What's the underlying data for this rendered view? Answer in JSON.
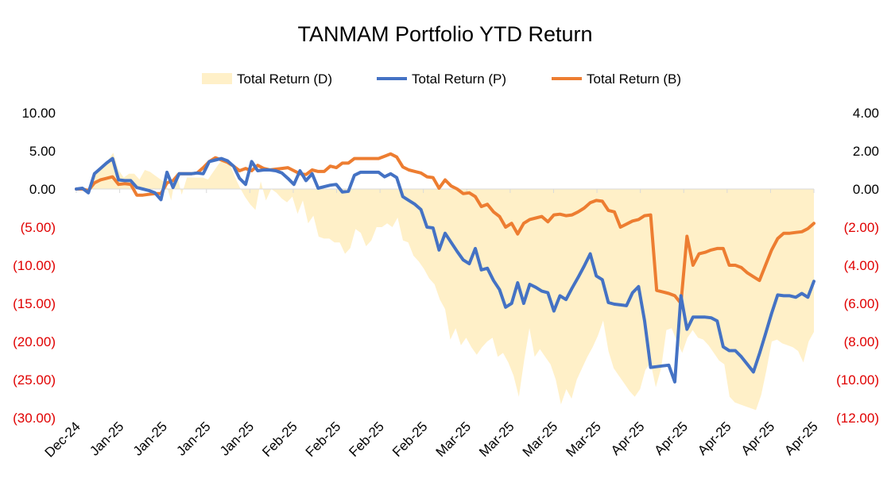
{
  "chart_data": {
    "type": "line",
    "title": "TANMAM Portfolio YTD Return",
    "legend_position": "top",
    "grid": false,
    "x_tick_labels": [
      "Dec-24",
      "Jan-25",
      "Jan-25",
      "Jan-25",
      "Jan-25",
      "Feb-25",
      "Feb-25",
      "Feb-25",
      "Feb-25",
      "Mar-25",
      "Mar-25",
      "Mar-25",
      "Mar-25",
      "Apr-25",
      "Apr-25",
      "Apr-25",
      "Apr-25",
      "Apr-25"
    ],
    "y_left": {
      "min": -30,
      "max": 10,
      "step": 5,
      "tick_labels": [
        "10.00",
        "5.00",
        "0.00",
        "(5.00)",
        "(10.00)",
        "(15.00)",
        "(20.00)",
        "(25.00)",
        "(30.00)"
      ],
      "negative_color": "#e00000"
    },
    "y_right": {
      "min": -12,
      "max": 4,
      "step": 2,
      "tick_labels": [
        "4.00",
        "2.00",
        "0.00",
        "(2.00)",
        "(4.00)",
        "(6.00)",
        "(8.00)",
        "(10.00)",
        "(12.00)"
      ],
      "negative_color": "#e00000"
    },
    "series": [
      {
        "name": "Total Return (D)",
        "type": "area",
        "axis": "right",
        "color": "#fff0c8",
        "values": [
          0.0,
          0.0,
          -0.2,
          0.5,
          0.9,
          1.2,
          1.5,
          1.9,
          1.0,
          0.6,
          0.8,
          0.8,
          0.5,
          1.0,
          0.9,
          0.7,
          0.5,
          0.3,
          -0.6,
          0.9,
          -0.3,
          0.6,
          0.6,
          0.6,
          0.6,
          0.5,
          0.9,
          1.3,
          1.6,
          1.4,
          0.7,
          0.1,
          -0.4,
          -0.8,
          -1.1,
          0.4,
          -0.6,
          0.0,
          -0.2,
          -0.5,
          -0.7,
          -0.4,
          -1.3,
          -0.6,
          -1.8,
          -1.4,
          -2.5,
          -2.6,
          -2.6,
          -2.8,
          -2.8,
          -3.4,
          -3.1,
          -2.1,
          -2.3,
          -3.0,
          -2.7,
          -2.0,
          -2.0,
          -1.8,
          -2.0,
          -1.5,
          -2.7,
          -2.8,
          -3.5,
          -3.8,
          -4.2,
          -4.7,
          -5.0,
          -5.8,
          -6.3,
          -7.9,
          -7.3,
          -8.2,
          -7.8,
          -8.3,
          -8.7,
          -8.3,
          -8.0,
          -7.8,
          -8.8,
          -8.6,
          -9.1,
          -9.8,
          -10.9,
          -9.0,
          -7.3,
          -8.8,
          -8.4,
          -8.8,
          -9.2,
          -10.0,
          -11.3,
          -10.5,
          -11.0,
          -10.0,
          -9.4,
          -8.8,
          -8.3,
          -7.7,
          -6.9,
          -8.5,
          -9.4,
          -9.8,
          -10.2,
          -10.6,
          -10.9,
          -10.5,
          -9.5,
          -9.1,
          -10.4,
          -9.4,
          -7.4,
          -7.3,
          -8.0,
          -8.6,
          -7.8,
          -7.4,
          -7.8,
          -7.9,
          -8.2,
          -8.6,
          -9.0,
          -9.2,
          -10.9,
          -11.2,
          -11.3,
          -11.4,
          -11.5,
          -11.6,
          -10.8,
          -9.5,
          -8.0,
          -7.9,
          -8.1,
          -8.2,
          -8.3,
          -8.5,
          -9.1,
          -8.0,
          -7.5
        ]
      },
      {
        "name": "Total Return (P)",
        "type": "line",
        "axis": "left",
        "color": "#4472c4",
        "values": [
          0.0,
          0.1,
          -0.5,
          2.0,
          2.7,
          3.4,
          4.0,
          1.2,
          1.1,
          1.1,
          0.2,
          0.0,
          -0.2,
          -0.5,
          -1.4,
          2.2,
          0.2,
          2.0,
          2.0,
          2.0,
          2.1,
          2.0,
          3.6,
          3.8,
          4.0,
          3.7,
          3.0,
          1.4,
          0.6,
          3.6,
          2.4,
          2.5,
          2.5,
          2.4,
          2.1,
          1.4,
          0.6,
          2.4,
          1.1,
          2.0,
          0.1,
          0.3,
          0.5,
          0.6,
          -0.4,
          -0.3,
          1.8,
          2.2,
          2.2,
          2.2,
          2.2,
          1.6,
          2.0,
          1.5,
          -1.0,
          -1.5,
          -2.0,
          -2.7,
          -5.0,
          -5.1,
          -8.0,
          -5.8,
          -7.0,
          -8.2,
          -9.3,
          -9.8,
          -7.8,
          -10.6,
          -10.4,
          -12.0,
          -13.2,
          -15.5,
          -15.0,
          -12.3,
          -15.0,
          -12.5,
          -12.9,
          -13.4,
          -13.6,
          -16.0,
          -14.0,
          -14.5,
          -13.0,
          -11.6,
          -10.1,
          -8.5,
          -11.4,
          -11.9,
          -14.9,
          -15.1,
          -15.2,
          -15.3,
          -13.6,
          -12.8,
          -17.3,
          -23.4,
          -23.3,
          -23.2,
          -23.1,
          -25.3,
          -14.0,
          -18.4,
          -16.8,
          -16.8,
          -16.8,
          -16.9,
          -17.3,
          -20.7,
          -21.2,
          -21.2,
          -22.0,
          -23.0,
          -24.0,
          -21.6,
          -19.0,
          -16.3,
          -13.9,
          -14.0,
          -14.0,
          -14.2,
          -13.7,
          -14.2,
          -12.1
        ]
      },
      {
        "name": "Total Return (B)",
        "type": "line",
        "axis": "left",
        "color": "#ed7d31",
        "values": [
          0.0,
          0.0,
          -0.2,
          0.8,
          1.2,
          1.4,
          1.6,
          0.6,
          0.7,
          0.6,
          -0.8,
          -0.8,
          -0.7,
          -0.6,
          -0.6,
          0.8,
          1.1,
          2.0,
          2.0,
          2.0,
          2.1,
          2.8,
          3.6,
          4.1,
          3.8,
          3.5,
          3.0,
          2.4,
          2.7,
          2.4,
          3.1,
          2.7,
          2.5,
          2.6,
          2.7,
          2.8,
          2.4,
          2.0,
          1.9,
          2.5,
          2.3,
          2.3,
          3.0,
          2.8,
          3.4,
          3.4,
          4.0,
          4.0,
          4.0,
          4.0,
          4.0,
          4.3,
          4.6,
          4.2,
          2.9,
          2.5,
          2.3,
          2.1,
          1.6,
          1.5,
          0.1,
          1.2,
          0.4,
          0.0,
          -0.6,
          -0.5,
          -1.0,
          -2.3,
          -2.0,
          -3.0,
          -3.6,
          -5.0,
          -4.5,
          -5.9,
          -4.5,
          -4.0,
          -3.8,
          -3.6,
          -4.3,
          -3.4,
          -3.3,
          -3.5,
          -3.4,
          -3.0,
          -2.5,
          -1.8,
          -1.5,
          -1.6,
          -2.8,
          -3.0,
          -5.0,
          -4.6,
          -4.2,
          -4.0,
          -3.5,
          -3.4,
          -13.3,
          -13.5,
          -13.7,
          -14.0,
          -15.0,
          -6.2,
          -10.0,
          -8.5,
          -8.3,
          -8.0,
          -7.8,
          -7.8,
          -10.0,
          -10.0,
          -10.3,
          -11.0,
          -11.5,
          -12.0,
          -10.0,
          -8.0,
          -6.5,
          -5.8,
          -5.8,
          -5.7,
          -5.6,
          -5.2,
          -4.5
        ]
      }
    ]
  }
}
